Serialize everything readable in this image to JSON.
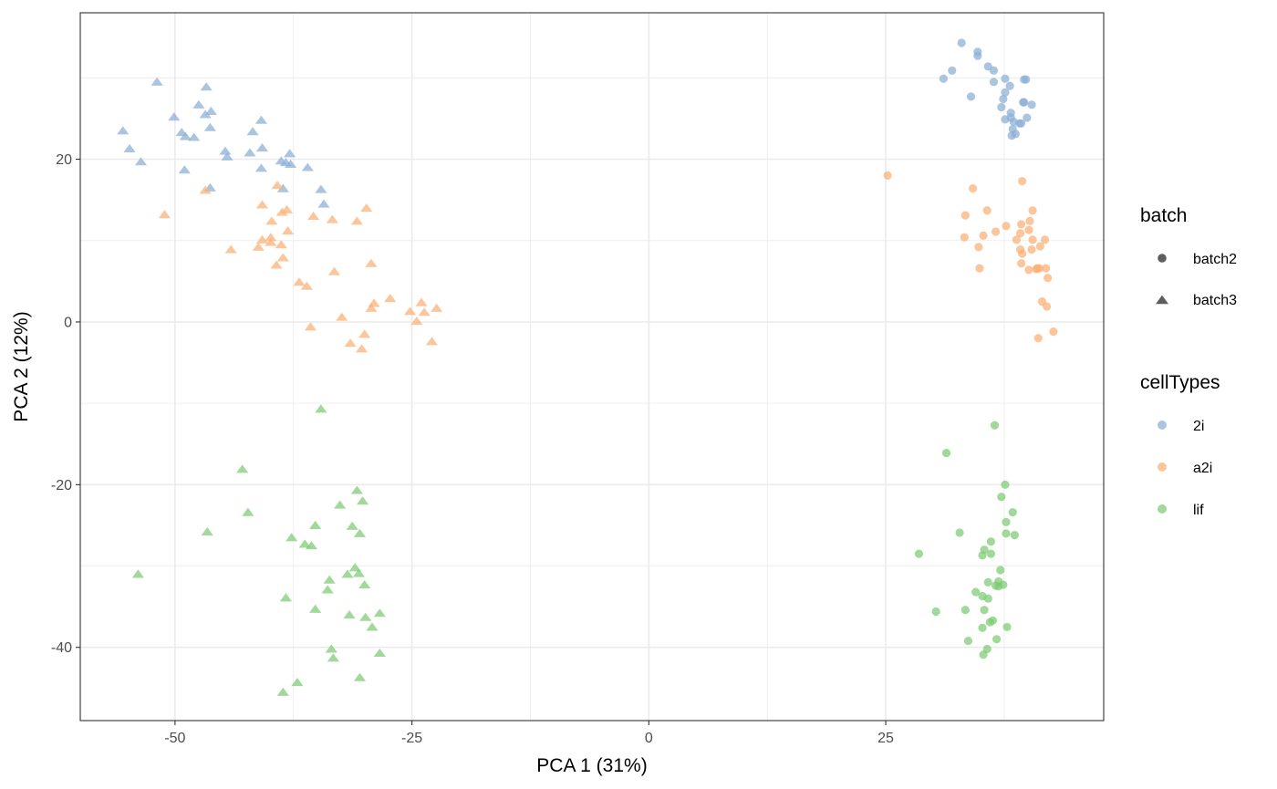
{
  "chart_data": {
    "type": "scatter",
    "title": "",
    "xlabel": "PCA 1 (31%)",
    "ylabel": "PCA 2 (12%)",
    "xlim": [
      -60,
      48
    ],
    "ylim": [
      -49,
      38
    ],
    "x_ticks": [
      -50,
      -25,
      0,
      25
    ],
    "y_ticks": [
      -40,
      -20,
      0,
      20
    ],
    "x_tick_labels": [
      "-50",
      "-25",
      "0",
      "25"
    ],
    "y_tick_labels": [
      "-40",
      "-20",
      "0",
      "20"
    ],
    "grid": true,
    "legend_position": "right",
    "legends": [
      {
        "title": "batch",
        "entries": [
          {
            "label": "batch2",
            "shape": "circle"
          },
          {
            "label": "batch3",
            "shape": "triangle"
          }
        ]
      },
      {
        "title": "cellTypes",
        "entries": [
          {
            "label": "2i",
            "color": "#8aaed6"
          },
          {
            "label": "a2i",
            "color": "#f9b074"
          },
          {
            "label": "lif",
            "color": "#7ccb71"
          }
        ]
      }
    ],
    "series": [
      {
        "batch": "batch2",
        "cellType": "2i",
        "shape": "circle",
        "color": "#8aaed6",
        "points": [
          [
            33,
            34.3
          ],
          [
            34.7,
            33.2
          ],
          [
            34.7,
            32.7
          ],
          [
            35.8,
            31.4
          ],
          [
            36.4,
            30.9
          ],
          [
            36.4,
            29.5
          ],
          [
            32,
            30.9
          ],
          [
            31.1,
            29.9
          ],
          [
            34,
            27.7
          ],
          [
            37.6,
            29.9
          ],
          [
            37.6,
            28.2
          ],
          [
            37.4,
            27.4
          ],
          [
            38.1,
            29
          ],
          [
            39.6,
            29.8
          ],
          [
            39.8,
            29.8
          ],
          [
            37.2,
            26.4
          ],
          [
            38.2,
            25.7
          ],
          [
            39.5,
            27
          ],
          [
            39.6,
            27
          ],
          [
            40.4,
            26.7
          ],
          [
            37.6,
            24.9
          ],
          [
            38.2,
            25.1
          ],
          [
            39.1,
            24.4
          ],
          [
            39.3,
            24.4
          ],
          [
            39.9,
            25.1
          ],
          [
            38.4,
            23.7
          ],
          [
            38.7,
            23.1
          ],
          [
            38.5,
            24.6
          ],
          [
            38.3,
            22.9
          ]
        ]
      },
      {
        "batch": "batch2",
        "cellType": "a2i",
        "shape": "circle",
        "color": "#f9b074",
        "points": [
          [
            25.2,
            18
          ],
          [
            34.2,
            16.4
          ],
          [
            39.4,
            17.3
          ],
          [
            33.4,
            13.1
          ],
          [
            35.7,
            13.7
          ],
          [
            33.3,
            10.4
          ],
          [
            35.3,
            10.6
          ],
          [
            36.6,
            11.1
          ],
          [
            37.7,
            11.8
          ],
          [
            39.3,
            12
          ],
          [
            40.5,
            13.7
          ],
          [
            40.2,
            12.4
          ],
          [
            39.2,
            10.9
          ],
          [
            40.1,
            11.3
          ],
          [
            38.8,
            10.1
          ],
          [
            40.5,
            10.1
          ],
          [
            41.8,
            10.1
          ],
          [
            34.8,
            9.2
          ],
          [
            39.2,
            8.9
          ],
          [
            39.4,
            8.4
          ],
          [
            40.4,
            8.9
          ],
          [
            41.3,
            9.3
          ],
          [
            39.3,
            7.2
          ],
          [
            40.9,
            6.5
          ],
          [
            41,
            6.6
          ],
          [
            41.2,
            6.6
          ],
          [
            41.9,
            6.6
          ],
          [
            40.1,
            6.4
          ],
          [
            34.9,
            6.6
          ],
          [
            42.1,
            5.4
          ],
          [
            41.5,
            2.5
          ],
          [
            42,
            1.9
          ],
          [
            42.7,
            -1.2
          ],
          [
            41.1,
            -2
          ]
        ]
      },
      {
        "batch": "batch2",
        "cellType": "lif",
        "shape": "circle",
        "color": "#7ccb71",
        "points": [
          [
            36.5,
            -12.7
          ],
          [
            31.4,
            -16.1
          ],
          [
            37.6,
            -20
          ],
          [
            37.2,
            -21.5
          ],
          [
            38.4,
            -23.4
          ],
          [
            37.7,
            -24.6
          ],
          [
            32.8,
            -25.9
          ],
          [
            37.7,
            -26
          ],
          [
            38.6,
            -26.2
          ],
          [
            36.1,
            -27
          ],
          [
            28.5,
            -28.5
          ],
          [
            35.2,
            -28.7
          ],
          [
            36.1,
            -28.5
          ],
          [
            37.1,
            -30.5
          ],
          [
            35.4,
            -28
          ],
          [
            35.8,
            -32
          ],
          [
            36.6,
            -32.4
          ],
          [
            37.4,
            -32.3
          ],
          [
            36.9,
            -32.5
          ],
          [
            36.9,
            -31.9
          ],
          [
            34.5,
            -33.2
          ],
          [
            35.2,
            -33.7
          ],
          [
            35.8,
            -34
          ],
          [
            33.4,
            -35.4
          ],
          [
            35.4,
            -35.4
          ],
          [
            30.3,
            -35.6
          ],
          [
            36,
            -36.9
          ],
          [
            36.3,
            -36.7
          ],
          [
            35.2,
            -37.6
          ],
          [
            37.8,
            -37.5
          ],
          [
            33.7,
            -39.2
          ],
          [
            36.7,
            -39
          ],
          [
            35.7,
            -40.2
          ],
          [
            35.3,
            -40.9
          ]
        ]
      },
      {
        "batch": "batch3",
        "cellType": "2i",
        "shape": "triangle",
        "color": "#8aaed6",
        "points": [
          [
            -51.9,
            29.6
          ],
          [
            -46.7,
            29
          ],
          [
            -47.5,
            26.8
          ],
          [
            -50.1,
            25.3
          ],
          [
            -46.8,
            25.6
          ],
          [
            -46.2,
            26
          ],
          [
            -40.9,
            24.9
          ],
          [
            -55.5,
            23.6
          ],
          [
            -49.3,
            23.4
          ],
          [
            -48.9,
            22.9
          ],
          [
            -48,
            22.8
          ],
          [
            -41.8,
            23.5
          ],
          [
            -46.3,
            24
          ],
          [
            -54.8,
            21.4
          ],
          [
            -53.6,
            19.8
          ],
          [
            -49,
            18.8
          ],
          [
            -44.7,
            21.1
          ],
          [
            -44.5,
            20.4
          ],
          [
            -42.1,
            20.9
          ],
          [
            -40.8,
            21.5
          ],
          [
            -40.9,
            19
          ],
          [
            -37.9,
            20.8
          ],
          [
            -38.8,
            19.9
          ],
          [
            -38.3,
            19.7
          ],
          [
            -37.8,
            19.5
          ],
          [
            -36,
            19.1
          ],
          [
            -46.3,
            16.6
          ],
          [
            -38.6,
            16.5
          ],
          [
            -34.6,
            16.4
          ],
          [
            -34.3,
            14.6
          ]
        ]
      },
      {
        "batch": "batch3",
        "cellType": "a2i",
        "shape": "triangle",
        "color": "#f9b074",
        "points": [
          [
            -46.8,
            16.3
          ],
          [
            -51.1,
            13.3
          ],
          [
            -39.2,
            16.9
          ],
          [
            -40.8,
            14.5
          ],
          [
            -38.2,
            13.9
          ],
          [
            -38.7,
            13.6
          ],
          [
            -35.4,
            13.1
          ],
          [
            -33.4,
            12.7
          ],
          [
            -30.8,
            12.5
          ],
          [
            -29.8,
            14.1
          ],
          [
            -39.8,
            12.5
          ],
          [
            -38.1,
            11.3
          ],
          [
            -40.8,
            10.2
          ],
          [
            -39.9,
            10.5
          ],
          [
            -39.9,
            9.9
          ],
          [
            -41.2,
            9.3
          ],
          [
            -44.1,
            9
          ],
          [
            -38.8,
            9.6
          ],
          [
            -38.6,
            8
          ],
          [
            -39.3,
            7.1
          ],
          [
            -29.3,
            7.3
          ],
          [
            -33.2,
            6.3
          ],
          [
            -36.9,
            5
          ],
          [
            -36.1,
            4.5
          ],
          [
            -29.3,
            1.8
          ],
          [
            -29,
            2.4
          ],
          [
            -27.3,
            3
          ],
          [
            -24,
            2.5
          ],
          [
            -25.2,
            1.4
          ],
          [
            -23.7,
            1.3
          ],
          [
            -22.4,
            1.8
          ],
          [
            -32.4,
            0.7
          ],
          [
            -24.5,
            0.2
          ],
          [
            -35.7,
            -0.5
          ],
          [
            -30,
            -1.4
          ],
          [
            -31.5,
            -2.5
          ],
          [
            -30.3,
            -3.2
          ],
          [
            -22.9,
            -2.3
          ]
        ]
      },
      {
        "batch": "batch3",
        "cellType": "lif",
        "shape": "triangle",
        "color": "#7ccb71",
        "points": [
          [
            -34.6,
            -10.6
          ],
          [
            -42.9,
            -18
          ],
          [
            -30.8,
            -20.6
          ],
          [
            -30.2,
            -21.9
          ],
          [
            -32.6,
            -22.4
          ],
          [
            -42.3,
            -23.3
          ],
          [
            -46.6,
            -25.7
          ],
          [
            -35.2,
            -24.9
          ],
          [
            -31.3,
            -25
          ],
          [
            -30.5,
            -25.9
          ],
          [
            -37.7,
            -26.4
          ],
          [
            -36.3,
            -27.2
          ],
          [
            -35.6,
            -27.4
          ],
          [
            -53.9,
            -30.9
          ],
          [
            -31,
            -30.1
          ],
          [
            -30.6,
            -30.8
          ],
          [
            -31.8,
            -30.9
          ],
          [
            -33.7,
            -31.6
          ],
          [
            -30,
            -32.2
          ],
          [
            -33.9,
            -32.8
          ],
          [
            -38.3,
            -33.8
          ],
          [
            -35.2,
            -35.2
          ],
          [
            -28.4,
            -35.7
          ],
          [
            -31.6,
            -35.9
          ],
          [
            -29.9,
            -36.2
          ],
          [
            -29.2,
            -37.4
          ],
          [
            -33.5,
            -40.1
          ],
          [
            -28.4,
            -40.6
          ],
          [
            -33.3,
            -41.2
          ],
          [
            -30.5,
            -43.6
          ],
          [
            -37.1,
            -44.2
          ],
          [
            -38.6,
            -45.4
          ]
        ]
      }
    ]
  }
}
